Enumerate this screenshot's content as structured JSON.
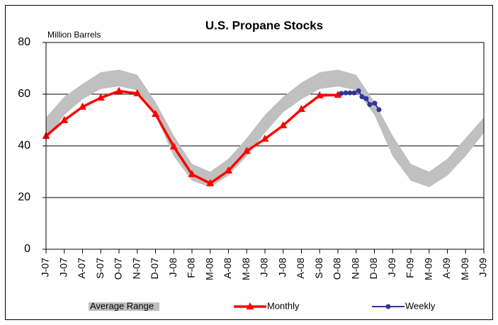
{
  "chart_data": {
    "type": "line",
    "title": "U.S. Propane Stocks",
    "y_label": "Million Barrels",
    "categories": [
      "J-07",
      "J-07",
      "A-07",
      "S-07",
      "O-07",
      "N-07",
      "D-07",
      "J-08",
      "F-08",
      "M-08",
      "A-08",
      "M-08",
      "J-08",
      "J-08",
      "A-08",
      "S-08",
      "O-08",
      "N-08",
      "D-08",
      "J-09",
      "F-09",
      "M-09",
      "A-09",
      "M-09",
      "J-09"
    ],
    "ylim": [
      0,
      80
    ],
    "yticks": [
      0,
      20,
      40,
      60,
      80
    ],
    "grid": true,
    "legend": "bottom",
    "series": [
      {
        "name": "Average Range",
        "color": "#c0c0c0",
        "upper": [
          51,
          59,
          64,
          68.5,
          69.5,
          67.5,
          57,
          44,
          33,
          30,
          35,
          43,
          52,
          59,
          64.5,
          68.5,
          69.5,
          67.5,
          57,
          44,
          33,
          30,
          35,
          43,
          51
        ],
        "lower": [
          42,
          52,
          58,
          62,
          63,
          61.5,
          52,
          36,
          26.5,
          24,
          28.5,
          36,
          45,
          53,
          58,
          62,
          63,
          61.5,
          52,
          36,
          26.5,
          24,
          28.5,
          36,
          45
        ]
      },
      {
        "name": "Monthly",
        "color": "#ff0000",
        "values": [
          43.8,
          49.9,
          55.1,
          58.6,
          61.2,
          60.3,
          52.3,
          39.7,
          29,
          25.5,
          30.4,
          38,
          42.7,
          47.9,
          54.2,
          59.5,
          59.7,
          null,
          null,
          null,
          null,
          null,
          null,
          null,
          null
        ]
      },
      {
        "name": "Weekly",
        "color": "#333399",
        "x": [
          16.19,
          16.43,
          16.66,
          16.89,
          17.13,
          17.32,
          17.55,
          17.75,
          18.02,
          18.25
        ],
        "values": [
          60.3,
          60.5,
          60.5,
          60.5,
          61.3,
          59,
          58.3,
          56,
          56.5,
          54
        ]
      }
    ]
  }
}
